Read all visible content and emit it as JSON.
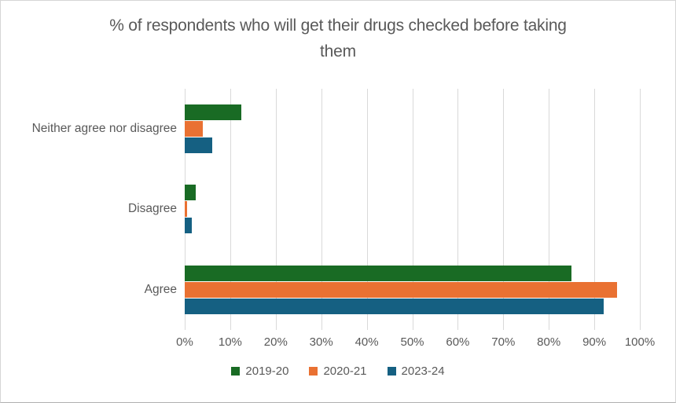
{
  "chart_data": {
    "type": "bar",
    "orientation": "horizontal",
    "title": "% of respondents who will get their drugs checked before taking them",
    "categories": [
      "Neither agree nor disagree",
      "Disagree",
      "Agree"
    ],
    "series": [
      {
        "name": "2019-20",
        "color": "#196B24",
        "values": [
          12.5,
          2.5,
          85
        ]
      },
      {
        "name": "2020-21",
        "color": "#E97132",
        "values": [
          4,
          0.5,
          95
        ]
      },
      {
        "name": "2023-24",
        "color": "#156082",
        "values": [
          6,
          1.5,
          92
        ]
      }
    ],
    "x_axis": {
      "min": 0,
      "max": 100,
      "tick_step": 10,
      "ticks": [
        "0%",
        "10%",
        "20%",
        "30%",
        "40%",
        "50%",
        "60%",
        "70%",
        "80%",
        "90%",
        "100%"
      ]
    },
    "grid": true,
    "legend_position": "bottom",
    "colors": {
      "text": "#595959",
      "gridline": "#D9D9D9",
      "chart_border": "#D6D6D6"
    }
  }
}
